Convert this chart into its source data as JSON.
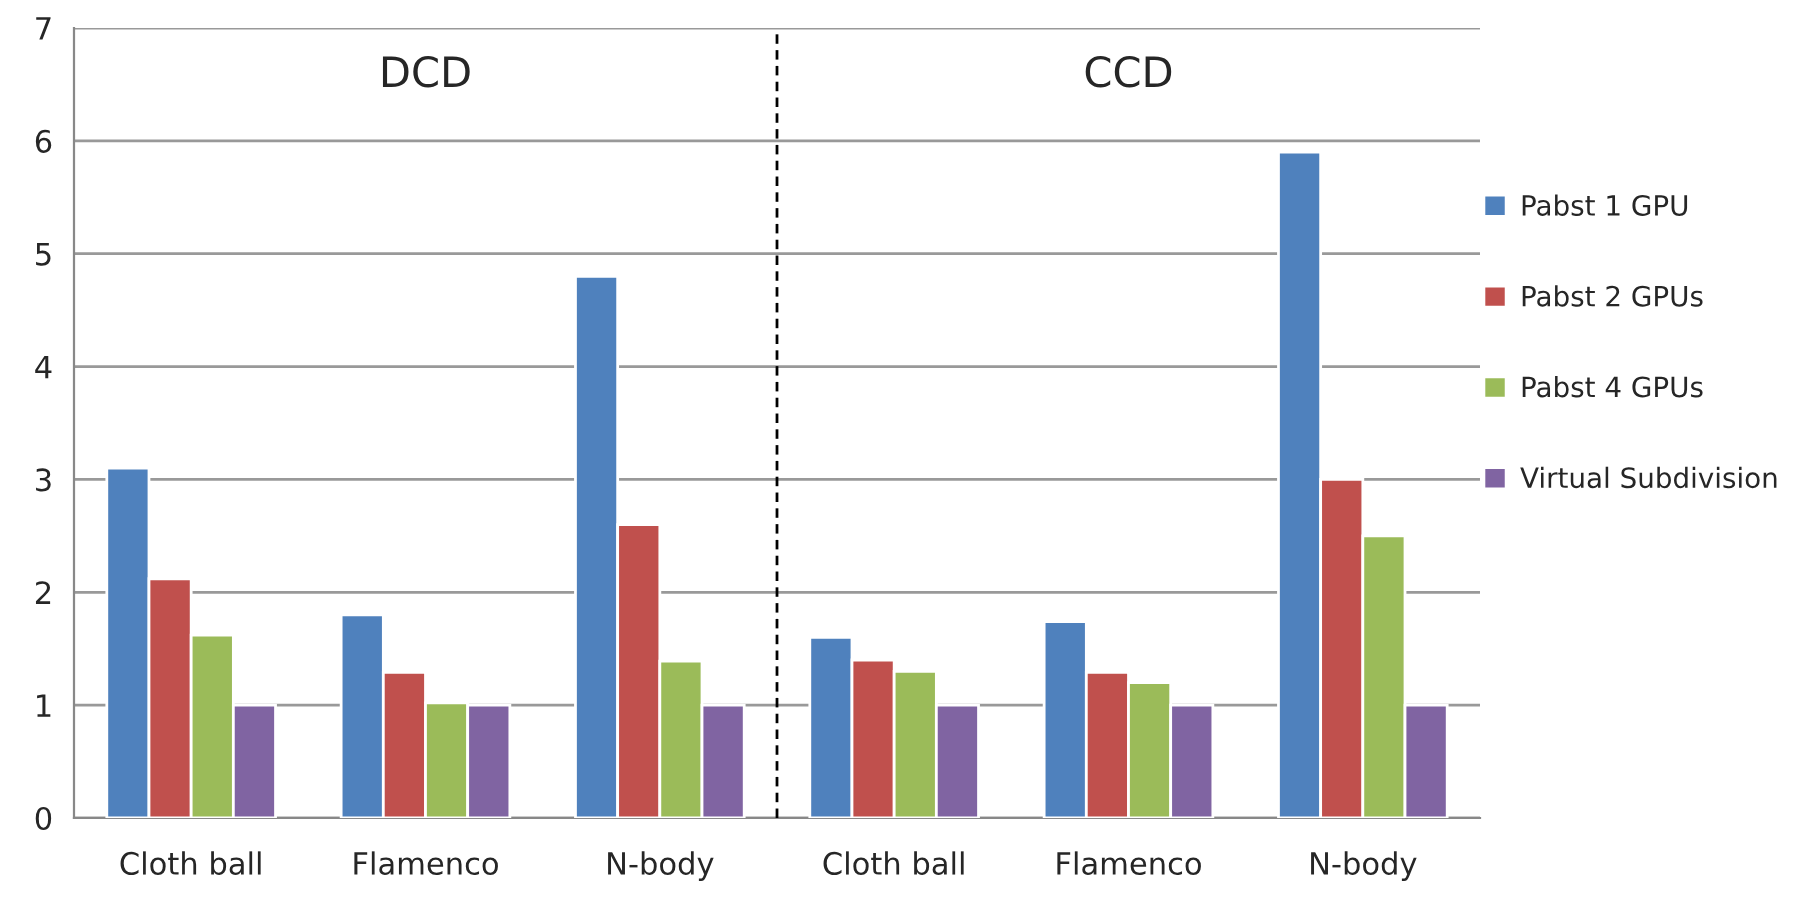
{
  "chart_data": {
    "type": "bar",
    "categories": [
      "Cloth ball",
      "Flamenco",
      "N-body",
      "Cloth ball",
      "Flamenco",
      "N-body"
    ],
    "series": [
      {
        "name": "Pabst 1 GPU",
        "color": "#4f81bd",
        "values": [
          3.1,
          1.8,
          4.8,
          1.6,
          1.74,
          5.9
        ]
      },
      {
        "name": "Pabst 2 GPUs",
        "color": "#c0504d",
        "values": [
          2.12,
          1.29,
          2.6,
          1.4,
          1.29,
          3.0
        ]
      },
      {
        "name": "Pabst 4 GPUs",
        "color": "#9bbb59",
        "values": [
          1.62,
          1.02,
          1.39,
          1.3,
          1.2,
          2.5
        ]
      },
      {
        "name": "Virtual Subdivision",
        "color": "#8064a2",
        "values": [
          1,
          1,
          1,
          1,
          1,
          1
        ]
      }
    ],
    "ylim": [
      0,
      7
    ],
    "yticks": [
      0,
      1,
      2,
      3,
      4,
      5,
      6,
      7
    ],
    "grid": "y",
    "legend": "right",
    "annotations": [
      "DCD",
      "CCD"
    ]
  }
}
